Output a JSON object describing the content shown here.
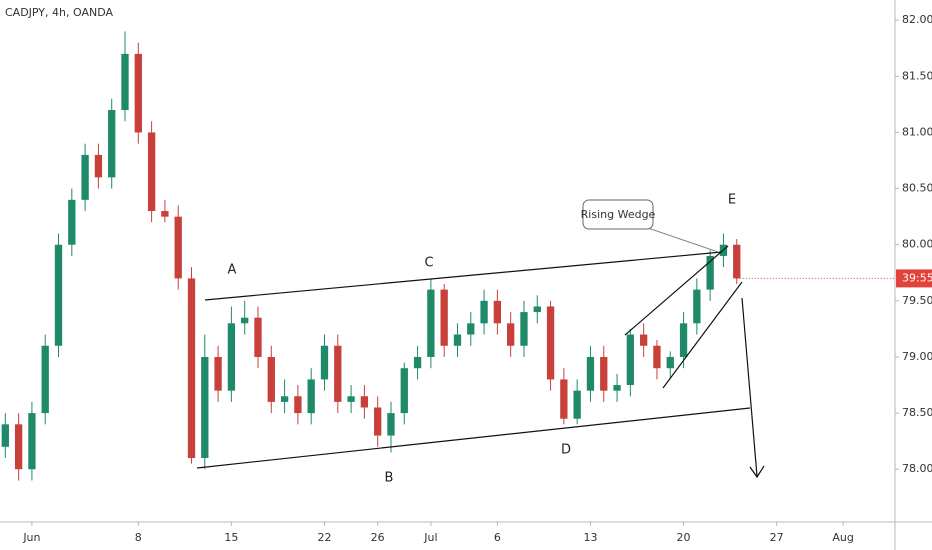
{
  "chart_data": {
    "type": "candlestick",
    "title": "CADJPY, 4h, OANDA",
    "x": [
      -2,
      -1,
      0,
      1,
      2,
      3,
      4,
      5,
      6,
      7,
      8,
      9,
      10,
      11,
      12,
      13,
      14,
      15,
      16,
      17,
      18,
      19,
      20,
      21,
      22,
      23,
      24,
      25,
      26,
      27,
      28,
      29,
      30,
      31,
      32,
      33,
      34,
      35,
      36,
      37,
      38,
      39,
      40,
      41,
      42,
      43,
      44,
      45,
      46,
      47,
      48,
      49,
      50,
      51,
      52,
      53
    ],
    "open": [
      78.2,
      78.4,
      78.0,
      78.5,
      79.1,
      80.0,
      80.4,
      80.8,
      80.6,
      81.2,
      81.7,
      81.0,
      80.3,
      80.25,
      79.7,
      78.1,
      79.0,
      78.7,
      79.3,
      79.35,
      79.0,
      78.6,
      78.65,
      78.5,
      78.8,
      79.1,
      78.6,
      78.65,
      78.55,
      78.3,
      78.5,
      78.9,
      79.0,
      79.6,
      79.1,
      79.2,
      79.3,
      79.5,
      79.3,
      79.1,
      79.4,
      79.45,
      78.8,
      78.45,
      78.7,
      79.0,
      78.7,
      78.75,
      79.2,
      79.1,
      78.9,
      79.0,
      79.3,
      79.6,
      79.9,
      80.0
    ],
    "high": [
      78.5,
      78.5,
      78.6,
      79.2,
      80.1,
      80.5,
      80.9,
      80.9,
      81.3,
      81.9,
      81.8,
      81.1,
      80.4,
      80.35,
      79.8,
      79.2,
      79.1,
      79.45,
      79.5,
      79.45,
      79.1,
      78.8,
      78.75,
      78.9,
      79.2,
      79.2,
      78.75,
      78.75,
      78.65,
      78.6,
      78.95,
      79.1,
      79.7,
      79.65,
      79.3,
      79.4,
      79.6,
      79.6,
      79.4,
      79.5,
      79.55,
      79.5,
      78.9,
      78.8,
      79.1,
      79.1,
      78.85,
      79.25,
      79.3,
      79.15,
      79.05,
      79.4,
      79.7,
      79.95,
      80.1,
      80.05
    ],
    "low": [
      78.1,
      77.9,
      77.9,
      78.4,
      79.0,
      79.9,
      80.3,
      80.5,
      80.5,
      81.1,
      80.9,
      80.2,
      80.2,
      79.6,
      78.05,
      78.0,
      78.6,
      78.6,
      79.2,
      78.9,
      78.5,
      78.5,
      78.4,
      78.4,
      78.7,
      78.5,
      78.5,
      78.45,
      78.2,
      78.15,
      78.4,
      78.8,
      78.9,
      79.0,
      79.0,
      79.1,
      79.2,
      79.2,
      79.0,
      79.0,
      79.3,
      78.7,
      78.4,
      78.4,
      78.6,
      78.6,
      78.6,
      78.65,
      79.0,
      78.8,
      78.8,
      78.9,
      79.2,
      79.5,
      79.8,
      79.65
    ],
    "close": [
      78.4,
      78.0,
      78.5,
      79.1,
      80.0,
      80.4,
      80.8,
      80.6,
      81.2,
      81.7,
      81.0,
      80.3,
      80.25,
      79.7,
      78.1,
      79.0,
      78.7,
      79.3,
      79.35,
      79.0,
      78.6,
      78.65,
      78.5,
      78.8,
      79.1,
      78.6,
      78.65,
      78.55,
      78.3,
      78.5,
      78.9,
      79.0,
      79.6,
      79.1,
      79.2,
      79.3,
      79.5,
      79.3,
      79.1,
      79.4,
      79.45,
      78.8,
      78.45,
      78.7,
      79.0,
      78.7,
      78.75,
      79.2,
      79.1,
      78.9,
      79.0,
      79.3,
      79.6,
      79.9,
      80.0,
      79.7
    ],
    "up_color": "#1e8a6a",
    "down_color": "#c8403a",
    "xlim": [
      -2.4,
      64.9
    ],
    "xticks": [
      {
        "value": 0,
        "label": "Jun"
      },
      8,
      15,
      22,
      26,
      {
        "value": 30,
        "label": "Jul"
      },
      {
        "value": 35,
        "label": "6"
      },
      {
        "value": 42,
        "label": "13"
      },
      {
        "value": 49,
        "label": "20"
      },
      {
        "value": 56,
        "label": "27"
      },
      {
        "value": 61,
        "label": "Aug"
      }
    ],
    "ylim": [
      77.53,
      82.18
    ],
    "yticks": [
      {
        "value": 78,
        "label": "78.000"
      },
      {
        "value": 78.5,
        "label": "78.500"
      },
      {
        "value": 79,
        "label": "79.000"
      },
      {
        "value": 79.5,
        "label": "79.500"
      },
      {
        "value": 80,
        "label": "80.000"
      },
      {
        "value": 80.5,
        "label": "80.500"
      },
      {
        "value": 81,
        "label": "81.000"
      },
      {
        "value": 81.5,
        "label": "81.500"
      },
      {
        "value": 82,
        "label": "82.000"
      }
    ],
    "price_marker": {
      "value": 79.7,
      "label": "39:55",
      "color": "#e2423a"
    },
    "annotations": [
      "A",
      "B",
      "C",
      "D",
      "E",
      "Rising Wedge"
    ]
  }
}
